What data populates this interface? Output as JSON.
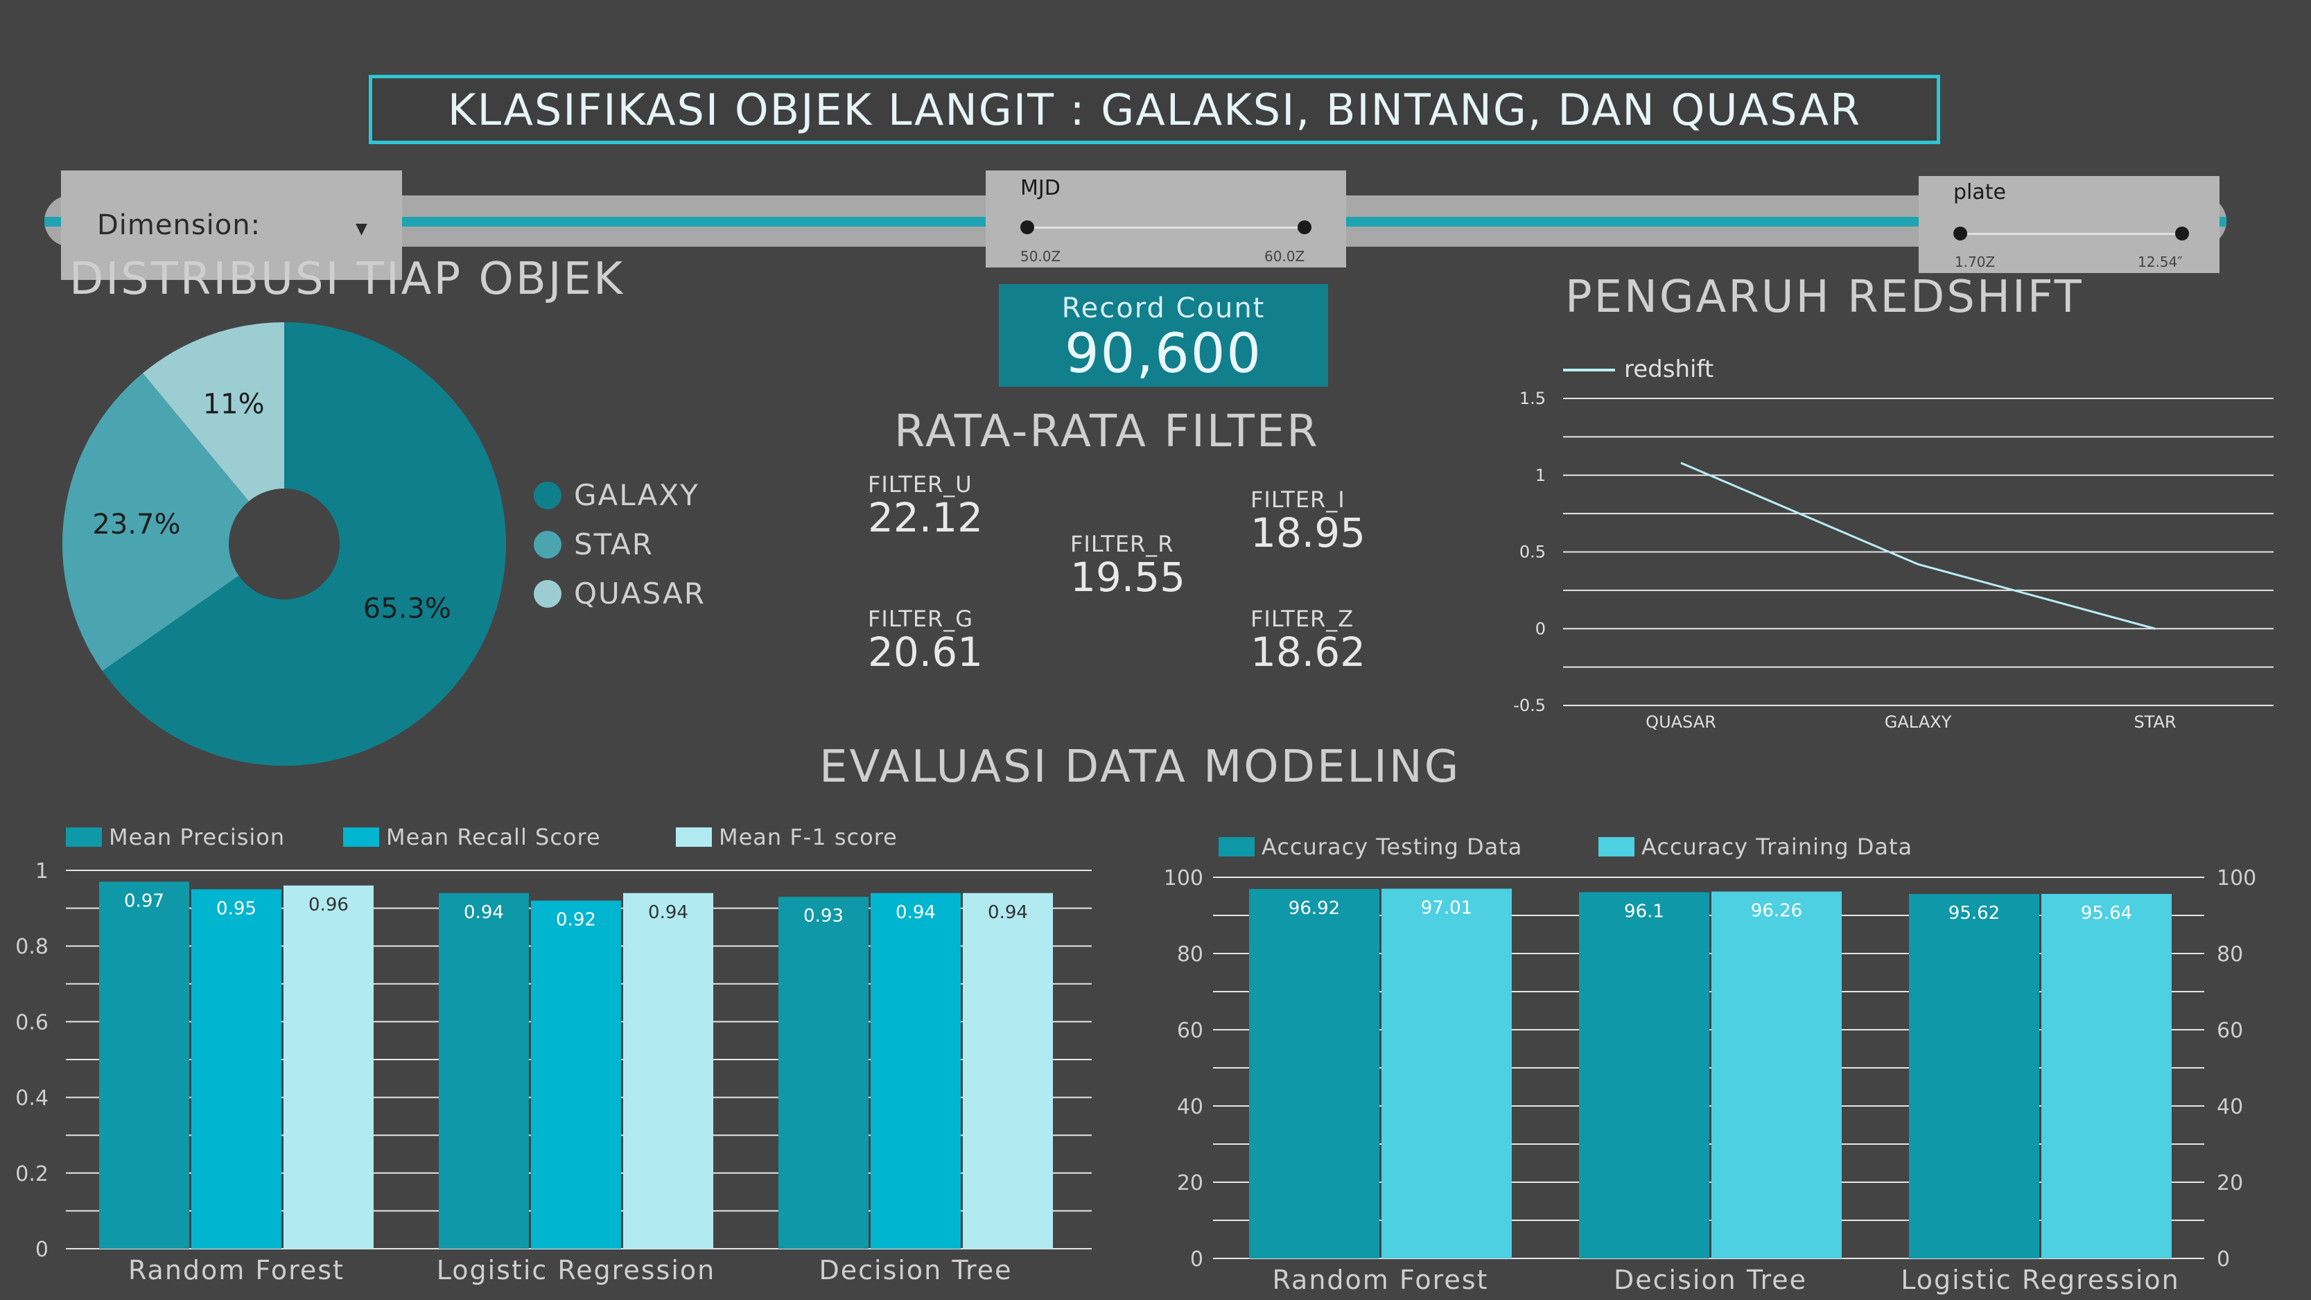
{
  "header": {
    "title": "KLASIFIKASI OBJEK LANGIT : GALAKSI, BINTANG, DAN QUASAR"
  },
  "controls": {
    "dimension_label": "Dimension:",
    "mjd": {
      "label": "MJD",
      "min_text": "50.0Z",
      "max_text": "60.0Z"
    },
    "plate": {
      "label": "plate",
      "min_text": "1.70Z",
      "max_text": "12.54″"
    }
  },
  "record_count": {
    "label": "Record Count",
    "value": "90,600"
  },
  "sections": {
    "distribusi": "DISTRIBUSI TIAP OBJEK",
    "pengaruh": "PENGARUH REDSHIFT",
    "rata": "RATA-RATA FILTER",
    "evaluasi": "EVALUASI DATA MODELING"
  },
  "filters": {
    "u": {
      "label": "FILTER_U",
      "value": "22.12"
    },
    "g": {
      "label": "FILTER_G",
      "value": "20.61"
    },
    "r": {
      "label": "FILTER_R",
      "value": "19.55"
    },
    "i": {
      "label": "FILTER_I",
      "value": "18.95"
    },
    "z": {
      "label": "FILTER_Z",
      "value": "18.62"
    }
  },
  "colors": {
    "galaxy": "#0f7f8c",
    "star": "#4aa5b0",
    "quasar": "#9ccdd2",
    "teal_dark": "#0f98a8",
    "teal_mid": "#00b5d0",
    "teal_light": "#b2eaf2",
    "train": "#4dd0e1"
  },
  "chart_data": [
    {
      "type": "pie",
      "donut": true,
      "categories": [
        "GALAXY",
        "STAR",
        "QUASAR"
      ],
      "values": [
        65.3,
        23.7,
        11
      ],
      "labels": [
        "65.3%",
        "23.7%",
        "11%"
      ],
      "legend_placement": "right"
    },
    {
      "type": "line",
      "series": [
        {
          "name": "redshift",
          "values": [
            1.08,
            0.42,
            0.0
          ]
        }
      ],
      "categories": [
        "QUASAR",
        "GALAXY",
        "STAR"
      ],
      "ylim": [
        -0.5,
        1.5
      ],
      "yticks": [
        "1.5",
        "1",
        "0.5",
        "0",
        "-0.5"
      ],
      "legend_placement": "top-left"
    },
    {
      "type": "bar",
      "categories": [
        "Random Forest",
        "Logistic Regression",
        "Decision Tree"
      ],
      "series": [
        {
          "name": "Mean Precision",
          "values": [
            0.97,
            0.94,
            0.93
          ],
          "labels": [
            "0.97",
            "0.94",
            "0.93"
          ]
        },
        {
          "name": "Mean Recall Score",
          "values": [
            0.95,
            0.92,
            0.94
          ],
          "labels": [
            "0.95",
            "0.92",
            "0.94"
          ]
        },
        {
          "name": "Mean F-1 score",
          "values": [
            0.96,
            0.94,
            0.94
          ],
          "labels": [
            "0.96",
            "0.94",
            "0.94"
          ]
        }
      ],
      "ylim": [
        0,
        1
      ],
      "yticks": [
        "0",
        "0.2",
        "0.4",
        "0.6",
        "0.8",
        "1"
      ],
      "legend_placement": "top"
    },
    {
      "type": "bar",
      "categories": [
        "Random Forest",
        "Decision Tree",
        "Logistic Regression"
      ],
      "series": [
        {
          "name": "Accuracy Testing Data",
          "values": [
            96.92,
            96.1,
            95.62
          ],
          "labels": [
            "96.92",
            "96.1",
            "95.62"
          ]
        },
        {
          "name": "Accuracy Training Data",
          "values": [
            97.01,
            96.26,
            95.64
          ],
          "labels": [
            "97.01",
            "96.26",
            "95.64"
          ]
        }
      ],
      "ylim": [
        0,
        100
      ],
      "yticks": [
        "0",
        "20",
        "40",
        "60",
        "80",
        "100"
      ],
      "legend_placement": "top"
    }
  ]
}
